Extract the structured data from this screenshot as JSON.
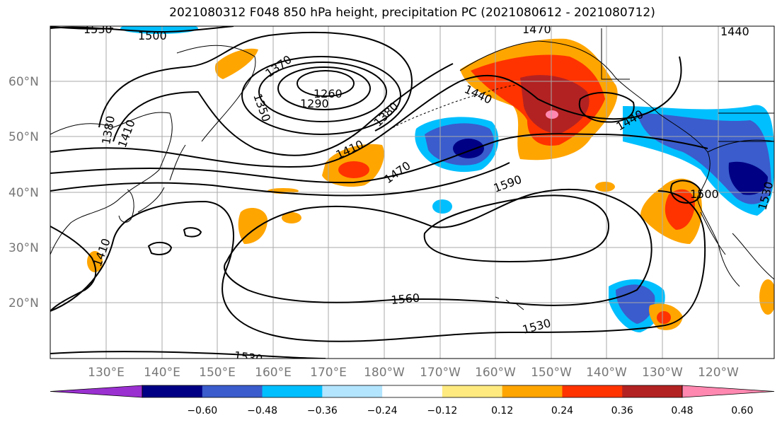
{
  "title": "2021080312 F048 850 hPa height, precipitation PC (2021080612 - 2021080712)",
  "map": {
    "lon_ticks": [
      "130°E",
      "140°E",
      "150°E",
      "160°E",
      "170°E",
      "180°W",
      "170°W",
      "160°W",
      "150°W",
      "140°W",
      "130°W",
      "120°W"
    ],
    "lat_ticks": [
      "60°N",
      "50°N",
      "40°N",
      "30°N",
      "20°N"
    ],
    "contour_labels": [
      "1530",
      "1500",
      "1470",
      "1440",
      "1370",
      "1350",
      "1260",
      "1290",
      "1380",
      "1380",
      "1410",
      "1410",
      "1470",
      "1590",
      "1440",
      "1500",
      "1530",
      "1410",
      "1560",
      "1530",
      "1530",
      "1440"
    ]
  },
  "colorbar": {
    "ticks": [
      "−0.60",
      "−0.48",
      "−0.36",
      "−0.24",
      "−0.12",
      "0.12",
      "0.24",
      "0.36",
      "0.48",
      "0.60"
    ],
    "colors": [
      "#9a30d0",
      "#000085",
      "#3a5ccc",
      "#00bfff",
      "#b3e5ff",
      "#ffffff",
      "#ffea80",
      "#ffa500",
      "#ff3300",
      "#b22222",
      "#ff88b0"
    ]
  }
}
